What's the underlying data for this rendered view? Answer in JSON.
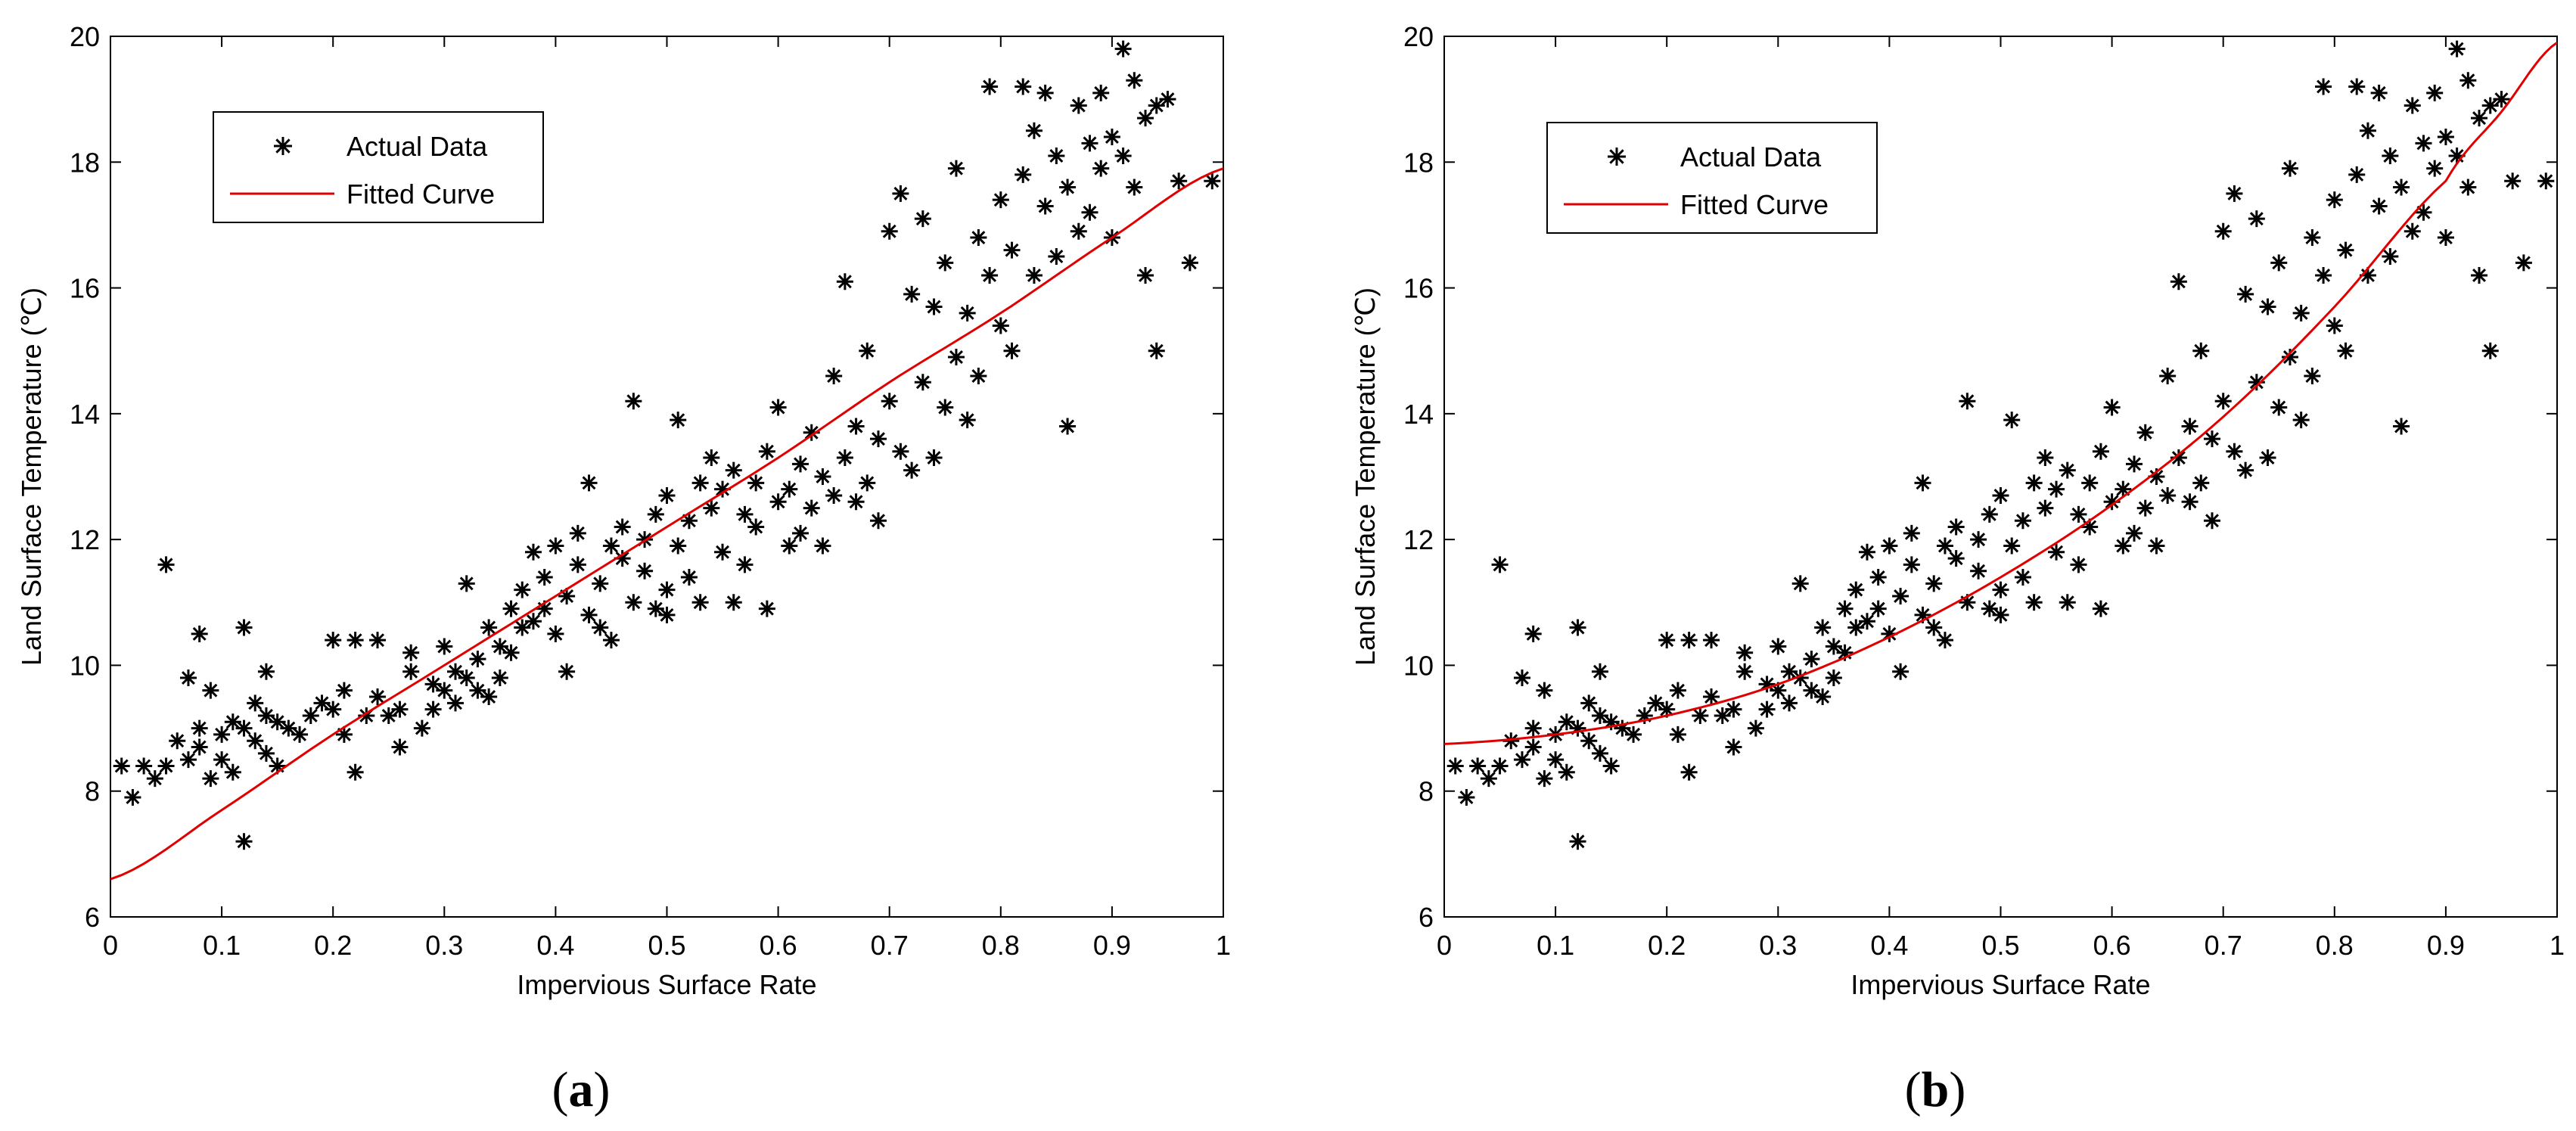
{
  "chart_data": [
    {
      "id": "a",
      "type": "scatter",
      "caption_open": "(",
      "caption_letter": "a",
      "caption_close": ")",
      "xlabel": "Impervious Surface Rate",
      "ylabel": "Land Surface Temperature (℃)",
      "xlim": [
        0,
        1
      ],
      "ylim": [
        6,
        20
      ],
      "xticks": [
        0,
        0.1,
        0.2,
        0.3,
        0.4,
        0.5,
        0.6,
        0.7,
        0.8,
        0.9,
        1
      ],
      "xtick_labels": [
        "0",
        "0.1",
        "0.2",
        "0.3",
        "0.4",
        "0.5",
        "0.6",
        "0.7",
        "0.8",
        "0.9",
        "1"
      ],
      "yticks": [
        6,
        8,
        10,
        12,
        14,
        16,
        18,
        20
      ],
      "ytick_labels": [
        "6",
        "8",
        "10",
        "12",
        "14",
        "16",
        "18",
        "20"
      ],
      "legend_position": "top-left",
      "series": [
        {
          "name": "Actual Data",
          "kind": "points",
          "marker": "*",
          "color": "#000000",
          "points": [
            [
              0.01,
              8.4
            ],
            [
              0.02,
              7.9
            ],
            [
              0.03,
              8.4
            ],
            [
              0.04,
              8.2
            ],
            [
              0.05,
              11.6
            ],
            [
              0.05,
              8.4
            ],
            [
              0.06,
              8.8
            ],
            [
              0.07,
              9.8
            ],
            [
              0.07,
              8.5
            ],
            [
              0.08,
              9.0
            ],
            [
              0.08,
              10.5
            ],
            [
              0.08,
              8.7
            ],
            [
              0.09,
              9.6
            ],
            [
              0.09,
              8.2
            ],
            [
              0.1,
              8.9
            ],
            [
              0.1,
              8.5
            ],
            [
              0.11,
              9.1
            ],
            [
              0.11,
              8.3
            ],
            [
              0.12,
              7.2
            ],
            [
              0.12,
              10.6
            ],
            [
              0.12,
              9.0
            ],
            [
              0.13,
              8.8
            ],
            [
              0.13,
              9.4
            ],
            [
              0.14,
              9.2
            ],
            [
              0.14,
              9.9
            ],
            [
              0.14,
              8.6
            ],
            [
              0.15,
              8.4
            ],
            [
              0.15,
              9.1
            ],
            [
              0.16,
              9.0
            ],
            [
              0.17,
              8.9
            ],
            [
              0.18,
              9.2
            ],
            [
              0.19,
              9.4
            ],
            [
              0.2,
              10.4
            ],
            [
              0.2,
              9.3
            ],
            [
              0.21,
              8.9
            ],
            [
              0.21,
              9.6
            ],
            [
              0.22,
              8.3
            ],
            [
              0.22,
              10.4
            ],
            [
              0.23,
              9.2
            ],
            [
              0.24,
              10.4
            ],
            [
              0.24,
              9.5
            ],
            [
              0.25,
              9.2
            ],
            [
              0.26,
              9.3
            ],
            [
              0.26,
              8.7
            ],
            [
              0.27,
              10.2
            ],
            [
              0.27,
              9.9
            ],
            [
              0.28,
              9.0
            ],
            [
              0.29,
              9.7
            ],
            [
              0.29,
              9.3
            ],
            [
              0.3,
              10.3
            ],
            [
              0.3,
              9.6
            ],
            [
              0.31,
              9.9
            ],
            [
              0.31,
              9.4
            ],
            [
              0.32,
              11.3
            ],
            [
              0.32,
              9.8
            ],
            [
              0.33,
              10.1
            ],
            [
              0.33,
              9.6
            ],
            [
              0.34,
              10.6
            ],
            [
              0.34,
              9.5
            ],
            [
              0.35,
              10.3
            ],
            [
              0.35,
              9.8
            ],
            [
              0.36,
              10.9
            ],
            [
              0.36,
              10.2
            ],
            [
              0.37,
              10.6
            ],
            [
              0.37,
              11.2
            ],
            [
              0.38,
              10.7
            ],
            [
              0.38,
              11.8
            ],
            [
              0.39,
              10.9
            ],
            [
              0.39,
              11.4
            ],
            [
              0.4,
              10.5
            ],
            [
              0.4,
              11.9
            ],
            [
              0.41,
              9.9
            ],
            [
              0.41,
              11.1
            ],
            [
              0.42,
              11.6
            ],
            [
              0.42,
              12.1
            ],
            [
              0.43,
              10.8
            ],
            [
              0.43,
              12.9
            ],
            [
              0.44,
              11.3
            ],
            [
              0.44,
              10.6
            ],
            [
              0.45,
              11.9
            ],
            [
              0.45,
              10.4
            ],
            [
              0.46,
              11.7
            ],
            [
              0.46,
              12.2
            ],
            [
              0.47,
              14.2
            ],
            [
              0.47,
              11.0
            ],
            [
              0.48,
              11.5
            ],
            [
              0.48,
              12.0
            ],
            [
              0.49,
              10.9
            ],
            [
              0.49,
              12.4
            ],
            [
              0.5,
              11.2
            ],
            [
              0.5,
              12.7
            ],
            [
              0.5,
              10.8
            ],
            [
              0.51,
              11.9
            ],
            [
              0.51,
              13.9
            ],
            [
              0.52,
              11.4
            ],
            [
              0.52,
              12.3
            ],
            [
              0.53,
              12.9
            ],
            [
              0.53,
              11.0
            ],
            [
              0.54,
              12.5
            ],
            [
              0.54,
              13.3
            ],
            [
              0.55,
              11.8
            ],
            [
              0.55,
              12.8
            ],
            [
              0.56,
              11.0
            ],
            [
              0.56,
              13.1
            ],
            [
              0.57,
              12.4
            ],
            [
              0.57,
              11.6
            ],
            [
              0.58,
              12.9
            ],
            [
              0.58,
              12.2
            ],
            [
              0.59,
              13.4
            ],
            [
              0.59,
              10.9
            ],
            [
              0.6,
              12.6
            ],
            [
              0.6,
              14.1
            ],
            [
              0.61,
              11.9
            ],
            [
              0.61,
              12.8
            ],
            [
              0.62,
              13.2
            ],
            [
              0.62,
              12.1
            ],
            [
              0.63,
              13.7
            ],
            [
              0.63,
              12.5
            ],
            [
              0.64,
              11.9
            ],
            [
              0.64,
              13.0
            ],
            [
              0.65,
              14.6
            ],
            [
              0.65,
              12.7
            ],
            [
              0.66,
              16.1
            ],
            [
              0.66,
              13.3
            ],
            [
              0.67,
              12.6
            ],
            [
              0.67,
              13.8
            ],
            [
              0.68,
              15.0
            ],
            [
              0.68,
              12.9
            ],
            [
              0.69,
              13.6
            ],
            [
              0.69,
              12.3
            ],
            [
              0.7,
              14.2
            ],
            [
              0.7,
              16.9
            ],
            [
              0.71,
              13.4
            ],
            [
              0.71,
              17.5
            ],
            [
              0.72,
              15.9
            ],
            [
              0.72,
              13.1
            ],
            [
              0.73,
              14.5
            ],
            [
              0.73,
              17.1
            ],
            [
              0.74,
              13.3
            ],
            [
              0.74,
              15.7
            ],
            [
              0.75,
              14.1
            ],
            [
              0.75,
              16.4
            ],
            [
              0.76,
              14.9
            ],
            [
              0.76,
              17.9
            ],
            [
              0.77,
              13.9
            ],
            [
              0.77,
              15.6
            ],
            [
              0.78,
              16.8
            ],
            [
              0.78,
              14.6
            ],
            [
              0.79,
              19.2
            ],
            [
              0.79,
              16.2
            ],
            [
              0.8,
              15.4
            ],
            [
              0.8,
              17.4
            ],
            [
              0.81,
              16.6
            ],
            [
              0.81,
              15.0
            ],
            [
              0.82,
              19.2
            ],
            [
              0.82,
              17.8
            ],
            [
              0.83,
              16.2
            ],
            [
              0.83,
              18.5
            ],
            [
              0.84,
              17.3
            ],
            [
              0.84,
              19.1
            ],
            [
              0.85,
              16.5
            ],
            [
              0.85,
              18.1
            ],
            [
              0.86,
              13.8
            ],
            [
              0.86,
              17.6
            ],
            [
              0.87,
              18.9
            ],
            [
              0.87,
              16.9
            ],
            [
              0.88,
              18.3
            ],
            [
              0.88,
              17.2
            ],
            [
              0.89,
              19.1
            ],
            [
              0.89,
              17.9
            ],
            [
              0.9,
              18.4
            ],
            [
              0.9,
              16.8
            ],
            [
              0.91,
              19.8
            ],
            [
              0.91,
              18.1
            ],
            [
              0.92,
              19.3
            ],
            [
              0.92,
              17.6
            ],
            [
              0.93,
              18.7
            ],
            [
              0.93,
              16.2
            ],
            [
              0.94,
              15.0
            ],
            [
              0.94,
              18.9
            ],
            [
              0.95,
              19.0
            ],
            [
              0.96,
              17.7
            ],
            [
              0.97,
              16.4
            ],
            [
              0.99,
              17.7
            ]
          ]
        },
        {
          "name": "Fitted Curve",
          "kind": "line",
          "color": "#e00000",
          "x": [
            0,
            0.1,
            0.2,
            0.3,
            0.4,
            0.5,
            0.6,
            0.7,
            0.8,
            0.9,
            1
          ],
          "y": [
            6.6,
            7.7,
            8.9,
            10.0,
            11.1,
            12.2,
            13.3,
            14.5,
            15.6,
            16.8,
            17.9
          ]
        }
      ]
    },
    {
      "id": "b",
      "type": "scatter",
      "caption_open": "(",
      "caption_letter": "b",
      "caption_close": ")",
      "xlabel": "Impervious Surface Rate",
      "ylabel": "Land Surface Temperature (℃)",
      "xlim": [
        0,
        1
      ],
      "ylim": [
        6,
        20
      ],
      "xticks": [
        0,
        0.1,
        0.2,
        0.3,
        0.4,
        0.5,
        0.6,
        0.7,
        0.8,
        0.9,
        1
      ],
      "xtick_labels": [
        "0",
        "0.1",
        "0.2",
        "0.3",
        "0.4",
        "0.5",
        "0.6",
        "0.7",
        "0.8",
        "0.9",
        "1"
      ],
      "yticks": [
        6,
        8,
        10,
        12,
        14,
        16,
        18,
        20
      ],
      "ytick_labels": [
        "6",
        "8",
        "10",
        "12",
        "14",
        "16",
        "18",
        "20"
      ],
      "legend_position": "top-left",
      "series": [
        {
          "name": "Actual Data",
          "kind": "points",
          "marker": "*",
          "color": "#000000",
          "points": "same_as_a"
        },
        {
          "name": "Fitted Curve",
          "kind": "line",
          "color": "#e00000",
          "x": [
            0,
            0.1,
            0.2,
            0.3,
            0.4,
            0.5,
            0.6,
            0.7,
            0.8,
            0.9,
            0.95,
            1
          ],
          "y": [
            8.75,
            8.9,
            9.2,
            9.7,
            10.45,
            11.4,
            12.55,
            13.95,
            15.7,
            17.7,
            18.8,
            19.9
          ]
        }
      ]
    }
  ]
}
